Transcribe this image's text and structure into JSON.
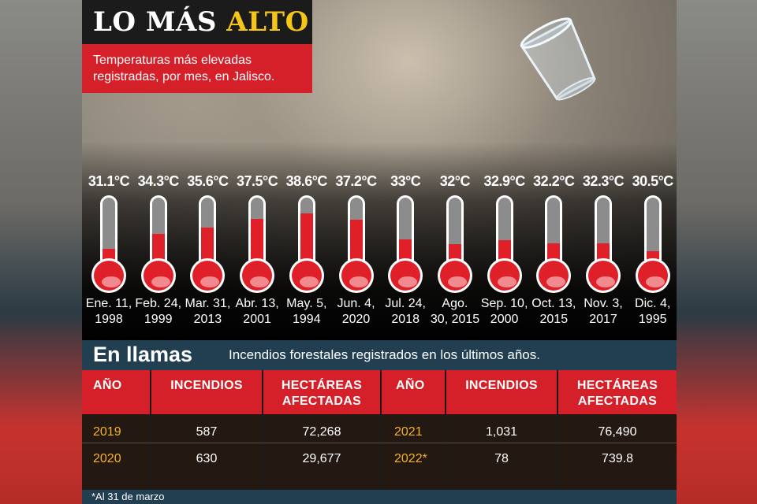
{
  "title": {
    "part1": "LO MÁS",
    "part2": "ALTO"
  },
  "subtitle": "Temperaturas más elevadas registradas, por mes, en Jalisco.",
  "colors": {
    "accent_red": "#d5202a",
    "title_yellow": "#f5c518",
    "year_gold": "#f5b324",
    "band_blue": "#213f51"
  },
  "chart_data": {
    "type": "bar",
    "title": "LO MÁS ALTO",
    "subtitle": "Temperaturas más elevadas registradas, por mes, en Jalisco.",
    "unit": "°C",
    "categories": [
      "Ene. 11, 1998",
      "Feb. 24, 1999",
      "Mar. 31, 2013",
      "Abr. 13, 2001",
      "May. 5, 1994",
      "Jun. 4, 2020",
      "Jul. 24, 2018",
      "Ago. 30, 2015",
      "Sep. 10, 2000",
      "Oct. 13, 2015",
      "Nov. 3, 2017",
      "Dic. 4, 1995"
    ],
    "values": [
      31.1,
      34.3,
      35.6,
      37.5,
      38.6,
      37.2,
      33,
      32,
      32.9,
      32.2,
      32.3,
      30.5
    ],
    "labels": [
      "31.1°C",
      "34.3°C",
      "35.6°C",
      "37.5°C",
      "38.6°C",
      "37.2°C",
      "33°C",
      "32°C",
      "32.9°C",
      "32.2°C",
      "32.3°C",
      "30.5°C"
    ],
    "date_line1": [
      "Ene. 11,",
      "Feb. 24,",
      "Mar. 31,",
      "Abr. 13,",
      "May. 5,",
      "Jun. 4,",
      "Jul. 24,",
      "Ago.",
      "Sep. 10,",
      "Oct. 13,",
      "Nov. 3,",
      "Dic. 4,"
    ],
    "date_line2": [
      "1998",
      "1999",
      "2013",
      "2001",
      "1994",
      "2020",
      "2018",
      "30, 2015",
      "2000",
      "2015",
      "2017",
      "1995"
    ]
  },
  "fires": {
    "title": "En llamas",
    "subtitle": "Incendios forestales registrados en los últimos años.",
    "headers": {
      "year": "AÑO",
      "fires": "INCENDIOS",
      "area_line1": "HECTÁREAS",
      "area_line2": "AFECTADAS"
    },
    "left_rows": [
      {
        "year": "2019",
        "fires": "587",
        "area": "72,268"
      },
      {
        "year": "2020",
        "fires": "630",
        "area": "29,677"
      }
    ],
    "right_rows": [
      {
        "year": "2021",
        "fires": "1,031",
        "area": "76,490"
      },
      {
        "year": "2022*",
        "fires": "78",
        "area": "739.8"
      }
    ],
    "footnote": "*Al 31 de marzo"
  }
}
